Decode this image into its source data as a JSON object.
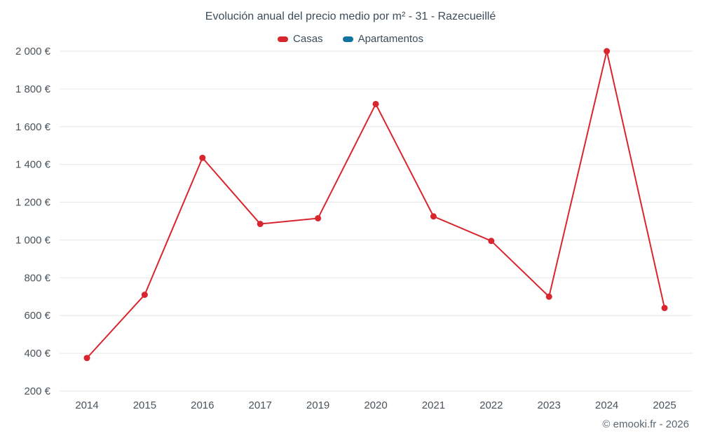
{
  "page": {
    "title": "Evolución anual del precio medio por m² - 31 - Razecueillé",
    "footer": "© emooki.fr - 2026"
  },
  "legend": [
    {
      "label": "Casas",
      "color": "#d9262e"
    },
    {
      "label": "Apartamentos",
      "color": "#1272a0"
    }
  ],
  "chart_data": {
    "type": "line",
    "title": "Evolución anual del precio medio por m² - 31 - Razecueillé",
    "categories": [
      "2014",
      "2015",
      "2016",
      "2017",
      "2019",
      "2020",
      "2021",
      "2022",
      "2023",
      "2024",
      "2025"
    ],
    "series": [
      {
        "name": "Casas",
        "color": "#d9262e",
        "values": [
          375,
          710,
          1435,
          1085,
          1115,
          1720,
          1125,
          995,
          700,
          2000,
          640
        ]
      },
      {
        "name": "Apartamentos",
        "color": "#1272a0",
        "values": []
      }
    ],
    "ylim": [
      200,
      2000
    ],
    "yticks": [
      {
        "value": 200,
        "label": "200 €"
      },
      {
        "value": 400,
        "label": "400 €"
      },
      {
        "value": 600,
        "label": "600 €"
      },
      {
        "value": 800,
        "label": "800 €"
      },
      {
        "value": 1000,
        "label": "1 000 €"
      },
      {
        "value": 1200,
        "label": "1 200 €"
      },
      {
        "value": 1400,
        "label": "1 400 €"
      },
      {
        "value": 1600,
        "label": "1 600 €"
      },
      {
        "value": 1800,
        "label": "1 800 €"
      },
      {
        "value": 2000,
        "label": "2 000 €"
      }
    ],
    "xlabel": "",
    "ylabel": "",
    "grid": "horizontal",
    "legend_position": "top"
  }
}
